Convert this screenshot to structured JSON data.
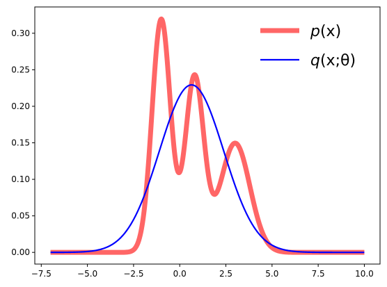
{
  "chart_data": {
    "type": "line",
    "title": "",
    "xlabel": "",
    "ylabel": "",
    "xlim": [
      -7.85,
      10.85
    ],
    "ylim": [
      -0.016,
      0.336
    ],
    "xticks": [
      -7.5,
      -5.0,
      -2.5,
      0.0,
      2.5,
      5.0,
      7.5,
      10.0
    ],
    "xtick_labels": [
      "−7.5",
      "−5.0",
      "−2.5",
      "0.0",
      "2.5",
      "5.0",
      "7.5",
      "10.0"
    ],
    "yticks": [
      0.0,
      0.05,
      0.1,
      0.15,
      0.2,
      0.25,
      0.3
    ],
    "ytick_labels": [
      "0.00",
      "0.05",
      "0.10",
      "0.15",
      "0.20",
      "0.25",
      "0.30"
    ],
    "grid": false,
    "legend": "top-right",
    "x_range": [
      -7,
      10
    ],
    "series": [
      {
        "name": "p(x)",
        "label_main": "p",
        "label_args": "(x)",
        "color": "#ff6666",
        "model": "mixture",
        "components": [
          {
            "weight": 0.4,
            "mean": -1.0,
            "sd": 0.5
          },
          {
            "weight": 0.3,
            "mean": 0.8,
            "sd": 0.5
          },
          {
            "weight": 0.3,
            "mean": 3.0,
            "sd": 0.8
          }
        ]
      },
      {
        "name": "q(x;θ)",
        "label_main": "q",
        "label_args": "(x;θ)",
        "color": "#0000ff",
        "model": "gaussian",
        "mean": 0.64,
        "sd": 1.74
      }
    ]
  }
}
